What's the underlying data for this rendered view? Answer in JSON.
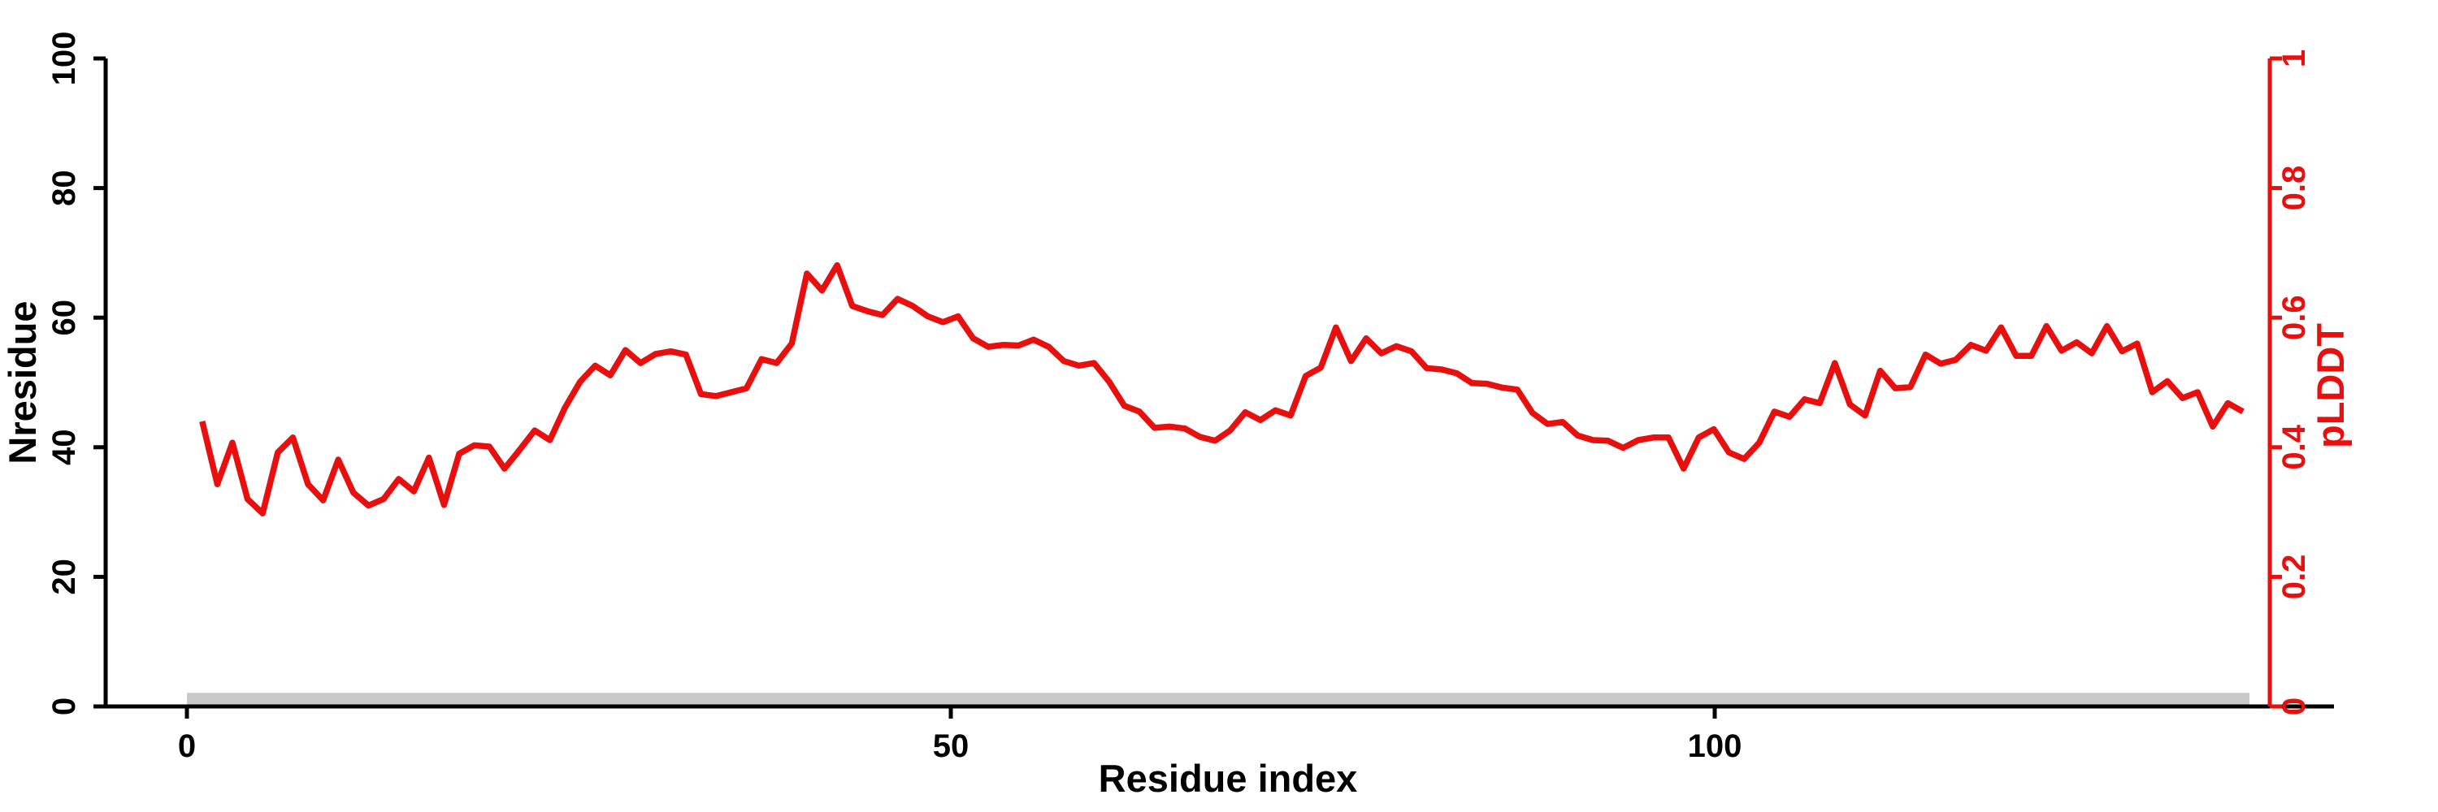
{
  "figure": {
    "background": "#ffffff",
    "kind": "protein pLDDT per-residue line plot"
  },
  "chart_data": {
    "type": "line",
    "title": "",
    "xlabel": "Residue index",
    "ylabel_left": "Nresidue",
    "ylabel_right": "pLDDT",
    "grid": false,
    "legend": null,
    "x_axis": {
      "ticks": [
        0,
        50,
        100
      ],
      "tick_labels": [
        "0",
        "50",
        "100"
      ],
      "color": "#000000",
      "range_shown": [
        0,
        140
      ]
    },
    "left_axis": {
      "range": [
        0,
        100
      ],
      "ticks": [
        0,
        20,
        40,
        60,
        80,
        100
      ],
      "tick_labels": [
        "0",
        "20",
        "40",
        "60",
        "80",
        "100"
      ],
      "color": "#000000"
    },
    "right_axis": {
      "range": [
        0,
        1
      ],
      "ticks": [
        0,
        0.2,
        0.4,
        0.6,
        0.8,
        1
      ],
      "tick_labels": [
        "0",
        "0.2",
        "0.4",
        "0.6",
        "0.8",
        "1"
      ],
      "color": "#e8100f"
    },
    "series": [
      {
        "name": "pLDDT",
        "axis": "right",
        "color": "#e8100f",
        "x_start": 1,
        "x_step": 1,
        "values": [
          0.44,
          0.343,
          0.407,
          0.32,
          0.298,
          0.392,
          0.415,
          0.343,
          0.318,
          0.381,
          0.33,
          0.31,
          0.32,
          0.351,
          0.332,
          0.384,
          0.311,
          0.39,
          0.403,
          0.401,
          0.367,
          0.396,
          0.426,
          0.411,
          0.461,
          0.501,
          0.526,
          0.511,
          0.55,
          0.53,
          0.544,
          0.548,
          0.543,
          0.482,
          0.479,
          0.485,
          0.491,
          0.536,
          0.53,
          0.56,
          0.668,
          0.642,
          0.681,
          0.618,
          0.61,
          0.604,
          0.629,
          0.618,
          0.602,
          0.593,
          0.602,
          0.568,
          0.555,
          0.558,
          0.557,
          0.566,
          0.555,
          0.533,
          0.526,
          0.53,
          0.501,
          0.464,
          0.455,
          0.43,
          0.432,
          0.429,
          0.416,
          0.41,
          0.426,
          0.454,
          0.442,
          0.457,
          0.449,
          0.51,
          0.523,
          0.585,
          0.533,
          0.568,
          0.545,
          0.556,
          0.548,
          0.522,
          0.52,
          0.514,
          0.499,
          0.498,
          0.492,
          0.489,
          0.453,
          0.436,
          0.439,
          0.418,
          0.411,
          0.41,
          0.399,
          0.411,
          0.415,
          0.415,
          0.367,
          0.415,
          0.428,
          0.392,
          0.382,
          0.407,
          0.455,
          0.447,
          0.474,
          0.468,
          0.53,
          0.466,
          0.449,
          0.518,
          0.491,
          0.493,
          0.543,
          0.529,
          0.535,
          0.558,
          0.549,
          0.585,
          0.541,
          0.541,
          0.587,
          0.549,
          0.562,
          0.545,
          0.587,
          0.548,
          0.56,
          0.485,
          0.502,
          0.476,
          0.485,
          0.432,
          0.468,
          0.455
        ]
      }
    ],
    "annotation_bar": {
      "name": "residue-range-bar",
      "color": "#c9c9c9",
      "x_from": 0,
      "x_to": 135,
      "left_axis_y": [
        0.25,
        2.1
      ]
    }
  }
}
